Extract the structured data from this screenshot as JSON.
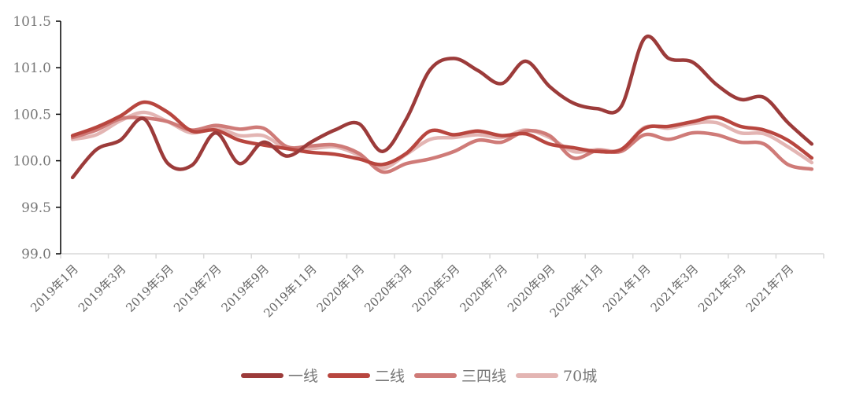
{
  "chart_data": {
    "type": "line",
    "title": "",
    "xlabel": "",
    "ylabel": "",
    "ylim": [
      99.0,
      101.5
    ],
    "yticks": [
      "99.0",
      "99.5",
      "100.0",
      "100.5",
      "101.0",
      "101.5"
    ],
    "grid": false,
    "legend_position": "bottom",
    "x": [
      "2019年1月",
      "2019年2月",
      "2019年3月",
      "2019年4月",
      "2019年5月",
      "2019年6月",
      "2019年7月",
      "2019年8月",
      "2019年9月",
      "2019年10月",
      "2019年11月",
      "2019年12月",
      "2020年1月",
      "2020年2月",
      "2020年3月",
      "2020年4月",
      "2020年5月",
      "2020年6月",
      "2020年7月",
      "2020年8月",
      "2020年9月",
      "2020年10月",
      "2020年11月",
      "2020年12月",
      "2021年1月",
      "2021年2月",
      "2021年3月",
      "2021年4月",
      "2021年5月",
      "2021年6月",
      "2021年7月",
      "2021年8月"
    ],
    "xtick_labels": [
      "2019年1月",
      "2019年3月",
      "2019年5月",
      "2019年7月",
      "2019年9月",
      "2019年11月",
      "2020年1月",
      "2020年3月",
      "2020年5月",
      "2020年7月",
      "2020年9月",
      "2020年11月",
      "2021年1月",
      "2021年3月",
      "2021年5月",
      "2021年7月"
    ],
    "series": [
      {
        "name": "一线",
        "color": "#9c3b3a",
        "values": [
          99.82,
          100.12,
          100.22,
          100.45,
          99.97,
          99.95,
          100.3,
          99.97,
          100.2,
          100.05,
          100.2,
          100.33,
          100.4,
          100.1,
          100.45,
          100.98,
          101.1,
          100.97,
          100.83,
          101.07,
          100.8,
          100.62,
          100.56,
          100.58,
          101.32,
          101.1,
          101.06,
          100.82,
          100.66,
          100.68,
          100.41,
          100.18
        ]
      },
      {
        "name": "二线",
        "color": "#b8463f",
        "values": [
          100.27,
          100.36,
          100.48,
          100.63,
          100.52,
          100.32,
          100.33,
          100.22,
          100.17,
          100.13,
          100.09,
          100.07,
          100.02,
          99.96,
          100.08,
          100.32,
          100.28,
          100.32,
          100.27,
          100.29,
          100.18,
          100.14,
          100.1,
          100.12,
          100.35,
          100.37,
          100.42,
          100.47,
          100.37,
          100.33,
          100.22,
          100.03
        ]
      },
      {
        "name": "三四线",
        "color": "#cf7b78",
        "values": [
          100.25,
          100.33,
          100.45,
          100.46,
          100.42,
          100.33,
          100.38,
          100.34,
          100.35,
          100.15,
          100.16,
          100.17,
          100.08,
          99.88,
          99.97,
          100.02,
          100.1,
          100.22,
          100.2,
          100.32,
          100.27,
          100.03,
          100.11,
          100.1,
          100.28,
          100.23,
          100.3,
          100.28,
          100.2,
          100.18,
          99.96,
          99.91
        ]
      },
      {
        "name": "70城",
        "color": "#e3b5b3",
        "values": [
          100.23,
          100.28,
          100.43,
          100.52,
          100.42,
          100.3,
          100.36,
          100.27,
          100.27,
          100.13,
          100.13,
          100.15,
          100.06,
          99.92,
          100.07,
          100.23,
          100.25,
          100.28,
          100.25,
          100.33,
          100.25,
          100.1,
          100.12,
          100.12,
          100.36,
          100.35,
          100.4,
          100.41,
          100.3,
          100.29,
          100.15,
          99.98
        ]
      }
    ]
  }
}
